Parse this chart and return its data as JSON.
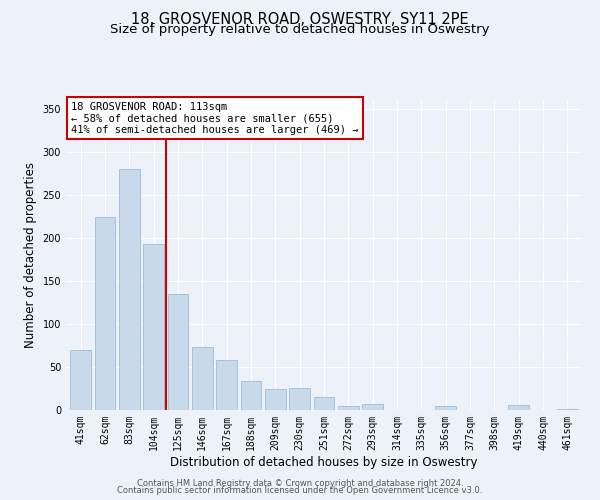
{
  "title": "18, GROSVENOR ROAD, OSWESTRY, SY11 2PE",
  "subtitle": "Size of property relative to detached houses in Oswestry",
  "xlabel": "Distribution of detached houses by size in Oswestry",
  "ylabel": "Number of detached properties",
  "bar_labels": [
    "41sqm",
    "62sqm",
    "83sqm",
    "104sqm",
    "125sqm",
    "146sqm",
    "167sqm",
    "188sqm",
    "209sqm",
    "230sqm",
    "251sqm",
    "272sqm",
    "293sqm",
    "314sqm",
    "335sqm",
    "356sqm",
    "377sqm",
    "398sqm",
    "419sqm",
    "440sqm",
    "461sqm"
  ],
  "bar_values": [
    70,
    224,
    280,
    193,
    135,
    73,
    58,
    34,
    24,
    25,
    15,
    5,
    7,
    0,
    0,
    5,
    0,
    0,
    6,
    0,
    1
  ],
  "bar_color": "#c8daea",
  "bar_edge_color": "#a0bcd8",
  "vline_x": 3.5,
  "vline_color": "#cc0000",
  "annotation_title": "18 GROSVENOR ROAD: 113sqm",
  "annotation_line1": "← 58% of detached houses are smaller (655)",
  "annotation_line2": "41% of semi-detached houses are larger (469) →",
  "annotation_box_facecolor": "#ffffff",
  "annotation_box_edgecolor": "#cc0000",
  "ylim": [
    0,
    360
  ],
  "yticks": [
    0,
    50,
    100,
    150,
    200,
    250,
    300,
    350
  ],
  "footer1": "Contains HM Land Registry data © Crown copyright and database right 2024.",
  "footer2": "Contains public sector information licensed under the Open Government Licence v3.0.",
  "bg_color": "#edf2f9",
  "grid_color": "#ffffff",
  "title_fontsize": 10.5,
  "subtitle_fontsize": 9.5,
  "ylabel_fontsize": 8.5,
  "xlabel_fontsize": 8.5,
  "tick_fontsize": 7,
  "annotation_fontsize": 7.5,
  "footer_fontsize": 6
}
